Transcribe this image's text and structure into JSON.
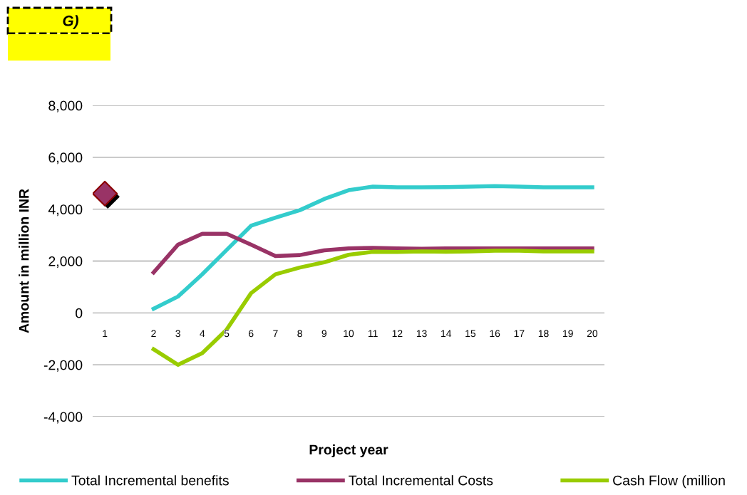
{
  "chart_data": {
    "type": "line",
    "title": "G)",
    "xlabel": "Project year",
    "ylabel": "Amount in million INR",
    "categories": [
      "1",
      null,
      "2",
      "3",
      "4",
      "5",
      "6",
      "7",
      "8",
      "9",
      "10",
      "11",
      "12",
      "13",
      "14",
      "15",
      "16",
      "17",
      "18",
      "19",
      "20"
    ],
    "series": [
      {
        "name": "Total Incremental benefits",
        "color": "#33cccc",
        "values": [
          null,
          null,
          160,
          630,
          1490,
          2430,
          3360,
          3670,
          3960,
          4390,
          4730,
          4870,
          4840,
          4840,
          4850,
          4870,
          4890,
          4870,
          4840,
          4840,
          4840
        ]
      },
      {
        "name": "Total Incremental Costs",
        "color": "#993366",
        "values": [
          null,
          null,
          1560,
          2630,
          3050,
          3050,
          2630,
          2190,
          2230,
          2410,
          2490,
          2510,
          2490,
          2470,
          2490,
          2490,
          2490,
          2490,
          2490,
          2490,
          2490
        ]
      },
      {
        "name": "Cash Flow (million",
        "color": "#99cc00",
        "values": [
          null,
          null,
          -1400,
          -2000,
          -1550,
          -640,
          760,
          1490,
          1750,
          1950,
          2240,
          2360,
          2350,
          2370,
          2360,
          2370,
          2400,
          2400,
          2370,
          2370,
          2370
        ]
      },
      {
        "type": "scatter",
        "marker": "diamond",
        "color": "#993366",
        "values": [
          4600,
          null,
          null,
          null,
          null,
          null,
          null,
          null,
          null,
          null,
          null,
          null,
          null,
          null,
          null,
          null,
          null,
          null,
          null,
          null,
          null
        ]
      }
    ],
    "ylim": [
      -4000,
      8000
    ],
    "yticks": [
      {
        "value": -4000,
        "label": "-4,000"
      },
      {
        "value": -2000,
        "label": "-2,000"
      },
      {
        "value": 0,
        "label": "0"
      },
      {
        "value": 2000,
        "label": "2,000"
      },
      {
        "value": 4000,
        "label": "4,000"
      },
      {
        "value": 6000,
        "label": "6,000"
      },
      {
        "value": 8000,
        "label": "8,000"
      }
    ],
    "grid": "y",
    "legend": "bottom"
  }
}
